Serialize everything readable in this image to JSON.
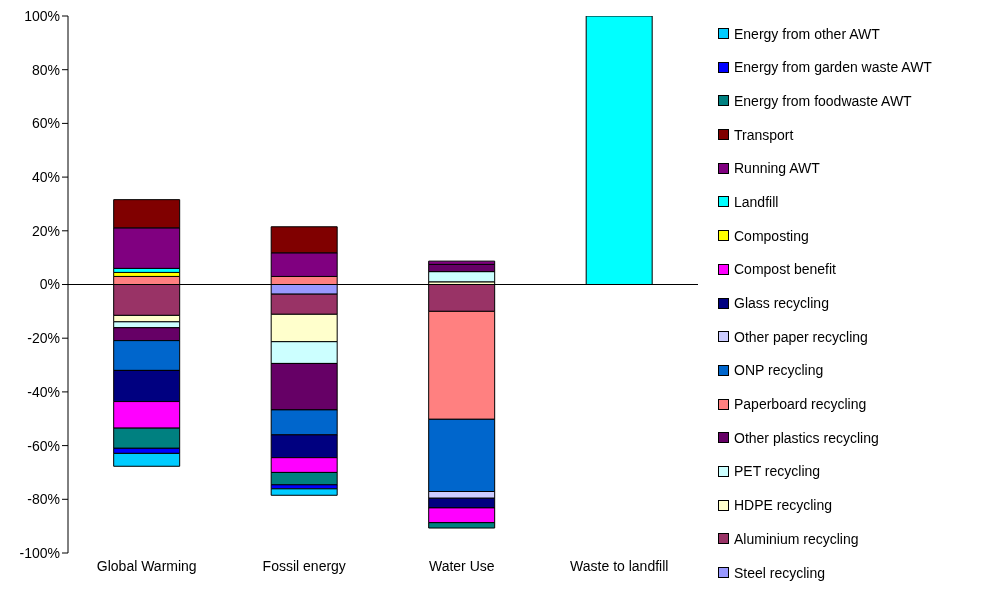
{
  "chart_data": {
    "type": "bar",
    "stacked": true,
    "categories": [
      "Global Warming",
      "Fossil energy",
      "Water Use",
      "Waste to landfill"
    ],
    "ylim": [
      -100,
      100
    ],
    "yticks": [
      {
        "value": -100,
        "label": "-100%"
      },
      {
        "value": -80,
        "label": "-80%"
      },
      {
        "value": -60,
        "label": "-60%"
      },
      {
        "value": -40,
        "label": "-40%"
      },
      {
        "value": -20,
        "label": "-20%"
      },
      {
        "value": 0,
        "label": "0%"
      },
      {
        "value": 20,
        "label": "20%"
      },
      {
        "value": 40,
        "label": "40%"
      },
      {
        "value": 60,
        "label": "60%"
      },
      {
        "value": 80,
        "label": "80%"
      },
      {
        "value": 100,
        "label": "100%"
      }
    ],
    "ref_lines": [
      {
        "axis": "y",
        "value": 0,
        "color": "#000000"
      }
    ],
    "legend": "right",
    "series": [
      {
        "name": "Steel recycling",
        "color": "#9999ff",
        "values": [
          null,
          -3.6,
          null,
          null
        ]
      },
      {
        "name": "Aluminium recycling",
        "color": "#993366",
        "values": [
          -11.5,
          -7.5,
          -10,
          null
        ]
      },
      {
        "name": "HDPE recycling",
        "color": "#ffffcc",
        "values": [
          -2.4,
          -10.2,
          1,
          null
        ]
      },
      {
        "name": "PET recycling",
        "color": "#ccffff",
        "values": [
          -2.2,
          -8.1,
          3.8,
          null
        ]
      },
      {
        "name": "Other plastics recycling",
        "color": "#660066",
        "values": [
          -4.8,
          -17.3,
          2.7,
          null
        ]
      },
      {
        "name": "Paperboard recycling",
        "color": "#ff8080",
        "values": [
          3,
          3,
          -40.2,
          null
        ]
      },
      {
        "name": "ONP recycling",
        "color": "#0066cc",
        "values": [
          -11.1,
          -9.3,
          -26.9,
          null
        ]
      },
      {
        "name": "Other paper recycling",
        "color": "#ccccff",
        "values": [
          null,
          null,
          -2.5,
          null
        ]
      },
      {
        "name": "Glass recycling",
        "color": "#000080",
        "values": [
          -11.6,
          -8.5,
          -3.6,
          null
        ]
      },
      {
        "name": "Compost benefit",
        "color": "#ff00ff",
        "values": [
          -9.9,
          -5.5,
          -5.5,
          null
        ]
      },
      {
        "name": "Composting",
        "color": "#ffff00",
        "values": [
          1.5,
          null,
          null,
          null
        ]
      },
      {
        "name": "Landfill",
        "color": "#00ffff",
        "values": [
          1.5,
          null,
          null,
          100
        ]
      },
      {
        "name": "Running AWT",
        "color": "#800080",
        "values": [
          15.1,
          8.8,
          1.2,
          null
        ]
      },
      {
        "name": "Transport",
        "color": "#800000",
        "values": [
          10.5,
          9.7,
          null,
          null
        ]
      },
      {
        "name": "Energy from foodwaste AWT",
        "color": "#008080",
        "values": [
          -7.5,
          -4.6,
          -2,
          null
        ]
      },
      {
        "name": "Energy from garden waste AWT",
        "color": "#0000ff",
        "values": [
          -1.9,
          -1.5,
          null,
          null
        ]
      },
      {
        "name": "Energy from other AWT",
        "color": "#00ccff",
        "values": [
          -4.8,
          -2.4,
          null,
          null
        ]
      }
    ]
  }
}
